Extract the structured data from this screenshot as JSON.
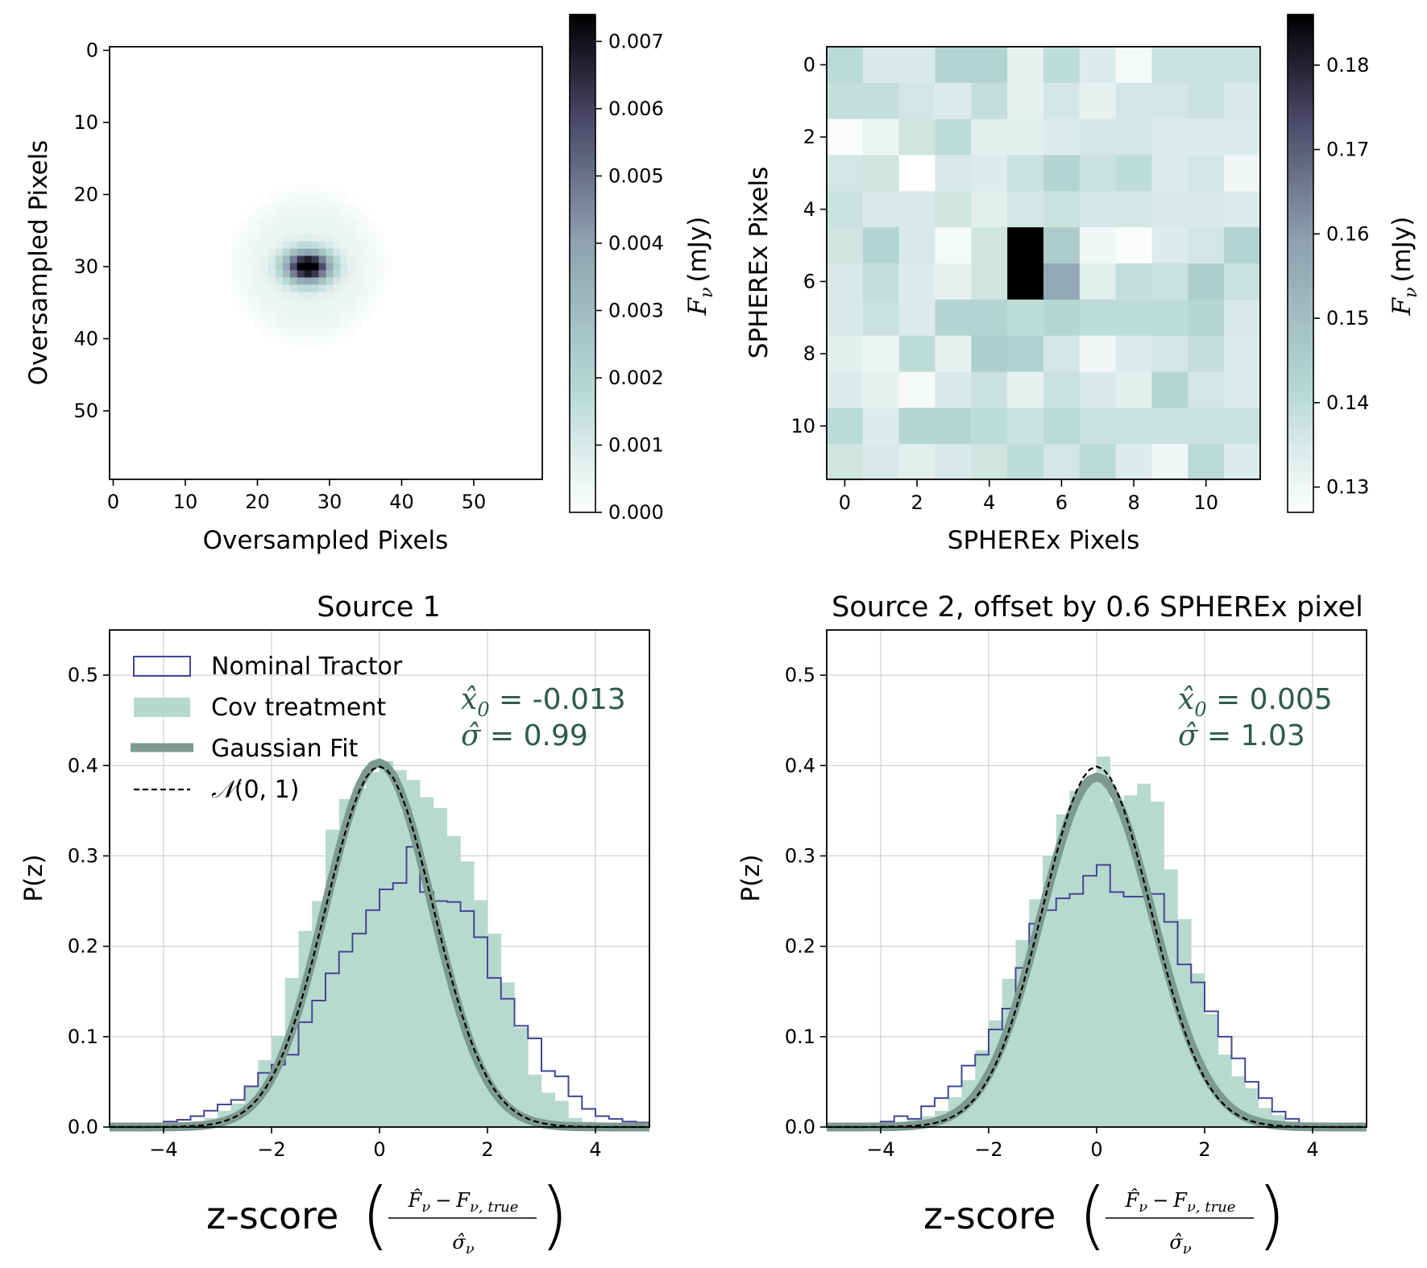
{
  "chart_data": [
    {
      "type": "heatmap",
      "panel": "top-left",
      "description": "Oversampled PSF image",
      "xlabel": "Oversampled Pixels",
      "ylabel": "Oversampled Pixels",
      "xticks": [
        "0",
        "10",
        "20",
        "30",
        "40",
        "50"
      ],
      "yticks": [
        "0",
        "10",
        "20",
        "30",
        "40",
        "50"
      ],
      "grid_size": 60,
      "peak_center": [
        27,
        30
      ],
      "peak_value": 0.0074,
      "colorbar": {
        "label_symbol": "F",
        "label_sub": "ν",
        "label_unit": "(mJy)",
        "range": [
          0.0,
          0.0074
        ],
        "ticks": [
          "0.000",
          "0.001",
          "0.002",
          "0.003",
          "0.004",
          "0.005",
          "0.006",
          "0.007"
        ]
      }
    },
    {
      "type": "heatmap",
      "panel": "top-right",
      "description": "SPHEREx pixel image",
      "xlabel": "SPHEREx Pixels",
      "ylabel": "SPHEREx Pixels",
      "xticks": [
        "0",
        "2",
        "4",
        "6",
        "8",
        "10"
      ],
      "yticks": [
        "0",
        "2",
        "4",
        "6",
        "8",
        "10"
      ],
      "values": [
        [
          0.141,
          0.135,
          0.135,
          0.143,
          0.143,
          0.132,
          0.14,
          0.134,
          0.129,
          0.138,
          0.138,
          0.138
        ],
        [
          0.139,
          0.139,
          0.136,
          0.134,
          0.139,
          0.132,
          0.136,
          0.132,
          0.136,
          0.136,
          0.138,
          0.135
        ],
        [
          0.128,
          0.131,
          0.137,
          0.14,
          0.133,
          0.133,
          0.134,
          0.136,
          0.136,
          0.134,
          0.134,
          0.134
        ],
        [
          0.136,
          0.137,
          0.127,
          0.135,
          0.134,
          0.138,
          0.143,
          0.138,
          0.14,
          0.134,
          0.136,
          0.13
        ],
        [
          0.138,
          0.135,
          0.135,
          0.137,
          0.133,
          0.136,
          0.138,
          0.136,
          0.136,
          0.135,
          0.135,
          0.134
        ],
        [
          0.137,
          0.143,
          0.135,
          0.129,
          0.137,
          0.186,
          0.146,
          0.13,
          0.128,
          0.134,
          0.136,
          0.143
        ],
        [
          0.135,
          0.139,
          0.134,
          0.132,
          0.137,
          0.186,
          0.157,
          0.133,
          0.139,
          0.138,
          0.145,
          0.138
        ],
        [
          0.135,
          0.138,
          0.134,
          0.143,
          0.143,
          0.14,
          0.142,
          0.14,
          0.14,
          0.14,
          0.142,
          0.135
        ],
        [
          0.133,
          0.131,
          0.14,
          0.132,
          0.145,
          0.144,
          0.136,
          0.13,
          0.134,
          0.136,
          0.139,
          0.134
        ],
        [
          0.134,
          0.132,
          0.129,
          0.135,
          0.138,
          0.132,
          0.138,
          0.135,
          0.133,
          0.142,
          0.136,
          0.134
        ],
        [
          0.141,
          0.134,
          0.142,
          0.142,
          0.14,
          0.138,
          0.141,
          0.138,
          0.138,
          0.138,
          0.138,
          0.138
        ],
        [
          0.137,
          0.135,
          0.133,
          0.135,
          0.137,
          0.14,
          0.136,
          0.141,
          0.134,
          0.13,
          0.141,
          0.134
        ]
      ],
      "colorbar": {
        "label_symbol": "F",
        "label_sub": "ν",
        "label_unit": "(mJy)",
        "range": [
          0.127,
          0.186
        ],
        "ticks": [
          "0.13",
          "0.14",
          "0.15",
          "0.16",
          "0.17",
          "0.18"
        ]
      }
    },
    {
      "type": "histogram",
      "panel": "bottom-left",
      "title": "Source 1",
      "xlabel_text": "z-score",
      "xlabel_num_hat": "F̂",
      "xlabel_num_sub": "ν",
      "xlabel_num_minus": "−",
      "xlabel_num_true": "F",
      "xlabel_num_true_sub": "ν, true",
      "xlabel_den": "σ̂",
      "xlabel_den_sub": "ν",
      "ylabel": "P(z)",
      "xlim": [
        -5,
        5
      ],
      "ylim": [
        0,
        0.55
      ],
      "xticks": [
        -4,
        -2,
        0,
        2,
        4
      ],
      "xtick_labels": [
        "−4",
        "−2",
        "0",
        "2",
        "4"
      ],
      "yticks": [
        0.0,
        0.1,
        0.2,
        0.3,
        0.4,
        0.5
      ],
      "ytick_labels": [
        "0.0",
        "0.1",
        "0.2",
        "0.3",
        "0.4",
        "0.5"
      ],
      "bin_edges_start": -5.0,
      "bin_width": 0.25,
      "nominal_tractor": [
        0.002,
        0.003,
        0.004,
        0.004,
        0.006,
        0.008,
        0.012,
        0.018,
        0.025,
        0.03,
        0.045,
        0.06,
        0.069,
        0.08,
        0.116,
        0.14,
        0.17,
        0.194,
        0.214,
        0.24,
        0.263,
        0.27,
        0.31,
        0.26,
        0.25,
        0.249,
        0.239,
        0.21,
        0.165,
        0.142,
        0.112,
        0.098,
        0.062,
        0.056,
        0.034,
        0.02,
        0.012,
        0.009,
        0.006,
        0.005
      ],
      "cov_treatment": [
        0.001,
        0.001,
        0.001,
        0.002,
        0.003,
        0.004,
        0.006,
        0.01,
        0.018,
        0.026,
        0.045,
        0.074,
        0.101,
        0.165,
        0.217,
        0.25,
        0.329,
        0.363,
        0.375,
        0.393,
        0.405,
        0.395,
        0.384,
        0.365,
        0.353,
        0.322,
        0.294,
        0.251,
        0.214,
        0.16,
        0.11,
        0.058,
        0.038,
        0.029,
        0.01,
        0.006,
        0.003,
        0.002,
        0.001,
        0.001
      ],
      "gaussian_fit": {
        "mu": -0.013,
        "sigma": 0.99
      },
      "normal_ref": {
        "mu": 0,
        "sigma": 1
      },
      "annotation": {
        "x0_symbol": "x̂",
        "x0_sub": "0",
        "x0_value": " = -0.013",
        "sigma_symbol": "σ̂",
        "sigma_value": " = 0.99"
      },
      "legend": {
        "placement": "top-left",
        "entries": [
          {
            "label": "Nominal Tractor",
            "kind": "step",
            "color": "#434599"
          },
          {
            "label": "Cov treatment",
            "kind": "patch",
            "color": "#b7d9cb"
          },
          {
            "label": "Gaussian Fit",
            "kind": "thick-line",
            "color": "#7d9a8e"
          },
          {
            "label_script": "𝒩",
            "label_rest": "(0, 1)",
            "kind": "dashed-line",
            "color": "#000000"
          }
        ]
      }
    },
    {
      "type": "histogram",
      "panel": "bottom-right",
      "title": "Source 2, offset by 0.6 SPHEREx pixel",
      "xlabel_text": "z-score",
      "xlabel_num_hat": "F̂",
      "xlabel_num_sub": "ν",
      "xlabel_num_minus": "−",
      "xlabel_num_true": "F",
      "xlabel_num_true_sub": "ν, true",
      "xlabel_den": "σ̂",
      "xlabel_den_sub": "ν",
      "ylabel": "P(z)",
      "xlim": [
        -5,
        5
      ],
      "ylim": [
        0,
        0.55
      ],
      "xticks": [
        -4,
        -2,
        0,
        2,
        4
      ],
      "xtick_labels": [
        "−4",
        "−2",
        "0",
        "2",
        "4"
      ],
      "yticks": [
        0.0,
        0.1,
        0.2,
        0.3,
        0.4,
        0.5
      ],
      "ytick_labels": [
        "0.0",
        "0.1",
        "0.2",
        "0.3",
        "0.4",
        "0.5"
      ],
      "bin_edges_start": -5.0,
      "bin_width": 0.25,
      "nominal_tractor": [
        0.002,
        0.002,
        0.003,
        0.004,
        0.006,
        0.012,
        0.009,
        0.023,
        0.032,
        0.045,
        0.068,
        0.08,
        0.108,
        0.131,
        0.176,
        0.225,
        0.24,
        0.253,
        0.258,
        0.278,
        0.29,
        0.26,
        0.255,
        0.255,
        0.258,
        0.227,
        0.18,
        0.16,
        0.128,
        0.1,
        0.076,
        0.05,
        0.032,
        0.017,
        0.009,
        0.004,
        0.002,
        0.002,
        0.001,
        0.001
      ],
      "cov_treatment": [
        0.001,
        0.001,
        0.001,
        0.002,
        0.003,
        0.005,
        0.008,
        0.012,
        0.018,
        0.033,
        0.052,
        0.085,
        0.118,
        0.164,
        0.207,
        0.252,
        0.3,
        0.346,
        0.372,
        0.387,
        0.41,
        0.36,
        0.367,
        0.38,
        0.36,
        0.285,
        0.23,
        0.17,
        0.125,
        0.08,
        0.056,
        0.043,
        0.021,
        0.013,
        0.006,
        0.003,
        0.002,
        0.001,
        0.001,
        0.001
      ],
      "gaussian_fit": {
        "mu": 0.005,
        "sigma": 1.03
      },
      "normal_ref": {
        "mu": 0,
        "sigma": 1
      },
      "annotation": {
        "x0_symbol": "x̂",
        "x0_sub": "0",
        "x0_value": " = 0.005",
        "sigma_symbol": "σ̂",
        "sigma_value": " = 1.03"
      }
    }
  ],
  "colors": {
    "nominal": "#434599",
    "cov_fill": "#b7d9cb",
    "gauss": "#7d9a8e",
    "annotation": "#2f5a4c",
    "grid": "#d0d0d0"
  }
}
